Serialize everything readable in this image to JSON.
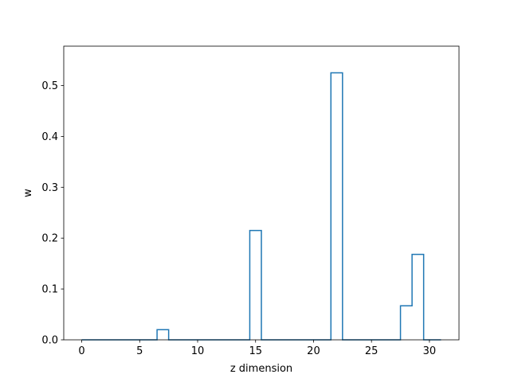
{
  "chart_data": {
    "type": "line",
    "drawstyle": "steps-mid",
    "xlabel": "z dimension",
    "ylabel": "w",
    "xlim": [
      -1.55,
      32.55
    ],
    "ylim": [
      0,
      0.5775
    ],
    "xticks": [
      0,
      5,
      10,
      15,
      20,
      25,
      30
    ],
    "yticks": [
      0.0,
      0.1,
      0.2,
      0.3,
      0.4,
      0.5
    ],
    "ytick_labels": [
      "0.0",
      "0.1",
      "0.2",
      "0.3",
      "0.4",
      "0.5"
    ],
    "grid": false,
    "series": [
      {
        "color": "#1f77b4",
        "x": [
          0,
          1,
          2,
          3,
          4,
          5,
          6,
          7,
          8,
          9,
          10,
          11,
          12,
          13,
          14,
          15,
          16,
          17,
          18,
          19,
          20,
          21,
          22,
          23,
          24,
          25,
          26,
          27,
          28,
          29,
          30,
          31
        ],
        "y": [
          0,
          0,
          0,
          0,
          0,
          0,
          0,
          0.02,
          0,
          0,
          0,
          0,
          0,
          0,
          0,
          0.215,
          0,
          0,
          0,
          0,
          0,
          0,
          0.525,
          0,
          0,
          0,
          0,
          0,
          0.067,
          0.168,
          0,
          0
        ]
      }
    ]
  }
}
